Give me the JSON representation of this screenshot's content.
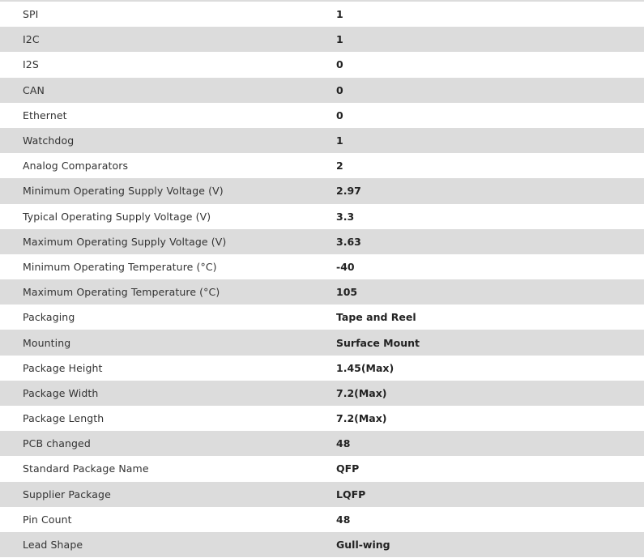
{
  "specs": [
    {
      "label": "SPI",
      "value": "1"
    },
    {
      "label": "I2C",
      "value": "1"
    },
    {
      "label": "I2S",
      "value": "0"
    },
    {
      "label": "CAN",
      "value": "0"
    },
    {
      "label": "Ethernet",
      "value": "0"
    },
    {
      "label": "Watchdog",
      "value": "1"
    },
    {
      "label": "Analog Comparators",
      "value": "2"
    },
    {
      "label": "Minimum Operating Supply Voltage (V)",
      "value": "2.97"
    },
    {
      "label": "Typical Operating Supply Voltage (V)",
      "value": "3.3"
    },
    {
      "label": "Maximum Operating Supply Voltage (V)",
      "value": "3.63"
    },
    {
      "label": "Minimum Operating Temperature (°C)",
      "value": "-40"
    },
    {
      "label": "Maximum Operating Temperature (°C)",
      "value": "105"
    },
    {
      "label": "Packaging",
      "value": "Tape and Reel"
    },
    {
      "label": "Mounting",
      "value": "Surface Mount"
    },
    {
      "label": "Package Height",
      "value": "1.45(Max)"
    },
    {
      "label": "Package Width",
      "value": "7.2(Max)"
    },
    {
      "label": "Package Length",
      "value": "7.2(Max)"
    },
    {
      "label": "PCB changed",
      "value": "48"
    },
    {
      "label": "Standard Package Name",
      "value": "QFP"
    },
    {
      "label": "Supplier Package",
      "value": "LQFP"
    },
    {
      "label": "Pin Count",
      "value": "48"
    },
    {
      "label": "Lead Shape",
      "value": "Gull-wing"
    }
  ]
}
